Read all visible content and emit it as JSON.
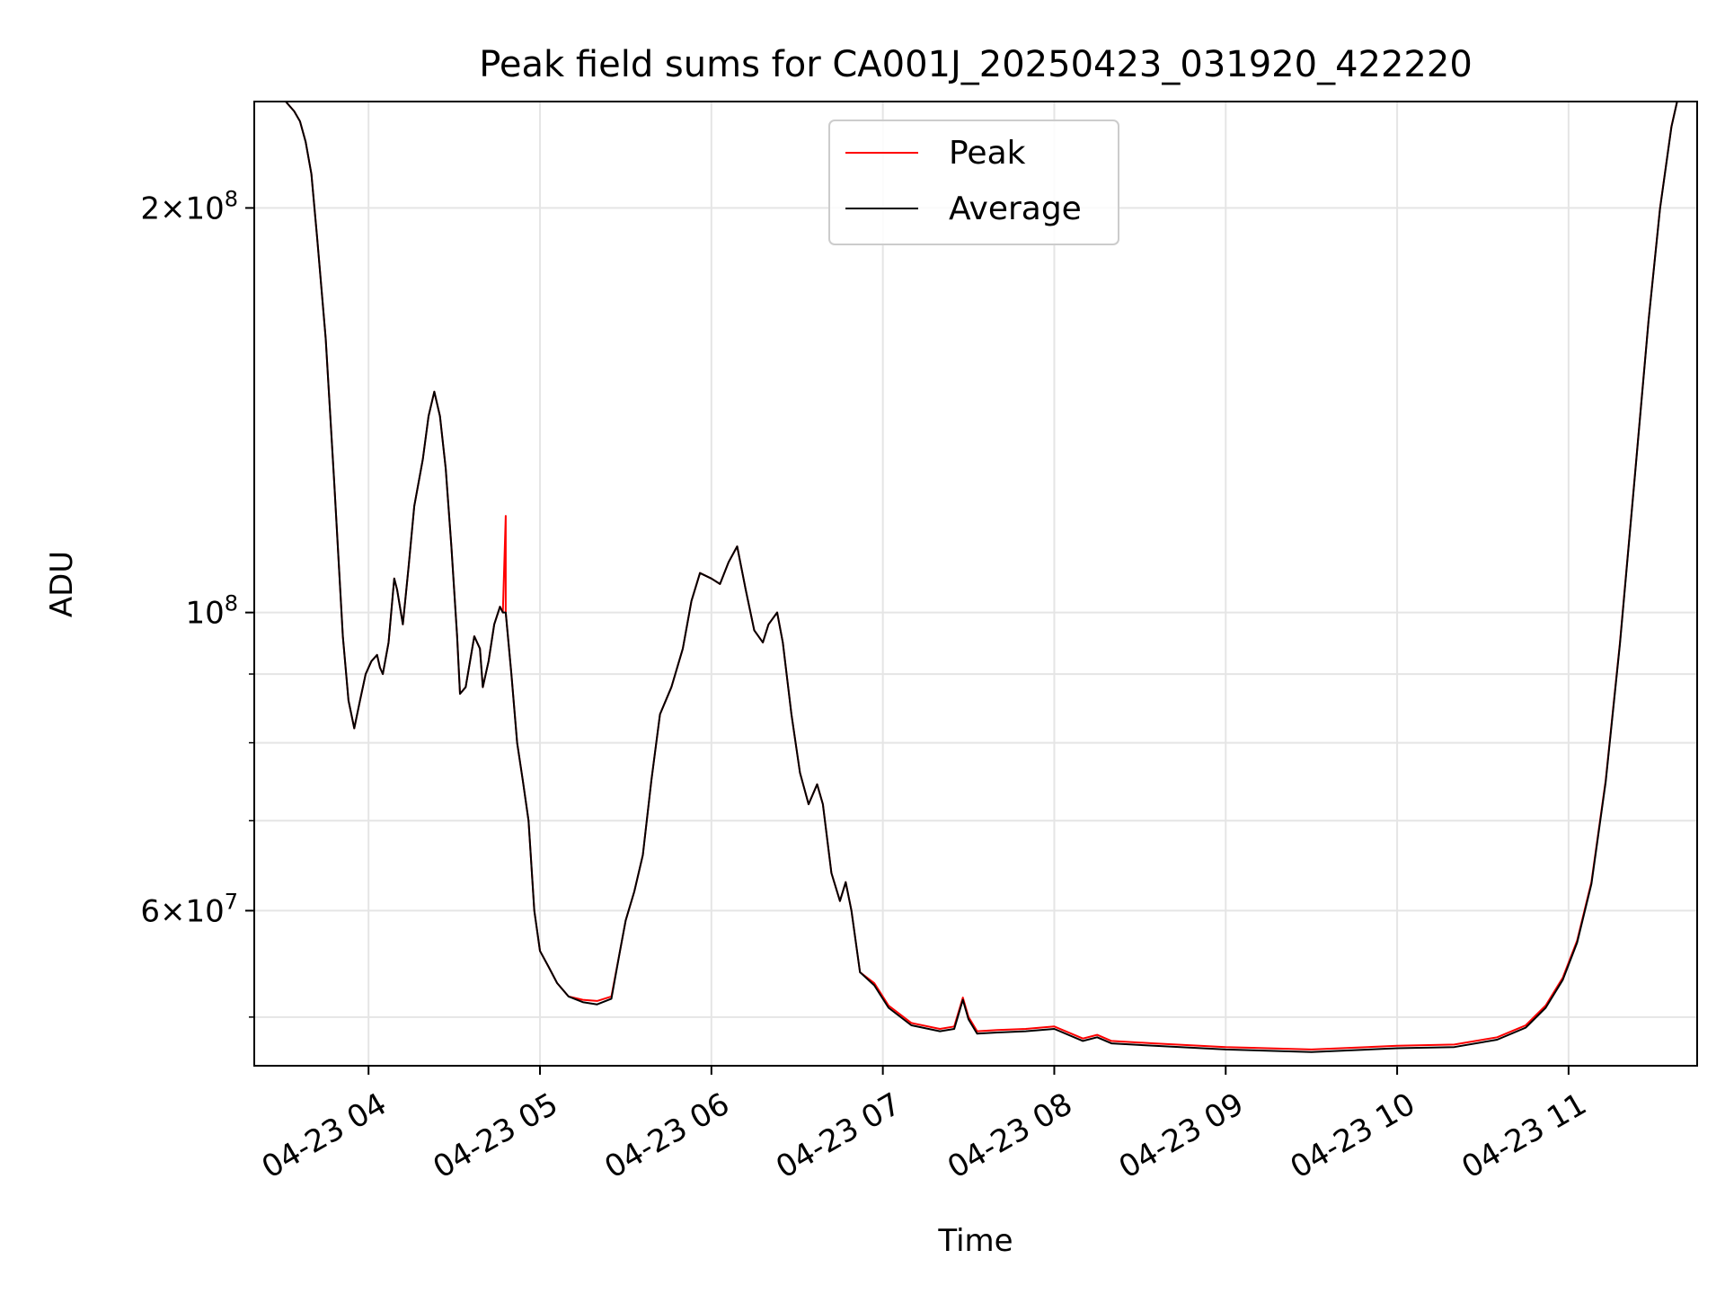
{
  "chart_data": {
    "type": "line",
    "title": "Peak field sums for CA001J_20250423_031920_422220",
    "xlabel": "Time",
    "ylabel": "ADU",
    "yscale": "log",
    "xlim": [
      "2025-04-23 03:20",
      "2025-04-23 11:45"
    ],
    "ylim": [
      46000000,
      240000000
    ],
    "x_ticks": [
      {
        "time": "2025-04-23 04:00",
        "label": "04-23 04"
      },
      {
        "time": "2025-04-23 05:00",
        "label": "04-23 05"
      },
      {
        "time": "2025-04-23 06:00",
        "label": "04-23 06"
      },
      {
        "time": "2025-04-23 07:00",
        "label": "04-23 07"
      },
      {
        "time": "2025-04-23 08:00",
        "label": "04-23 08"
      },
      {
        "time": "2025-04-23 09:00",
        "label": "04-23 09"
      },
      {
        "time": "2025-04-23 10:00",
        "label": "04-23 10"
      },
      {
        "time": "2025-04-23 11:00",
        "label": "04-23 11"
      }
    ],
    "y_major_ticks": [
      {
        "value": 60000000,
        "base": "6×10",
        "exp": "7"
      },
      {
        "value": 100000000,
        "base": "10",
        "exp": "8"
      },
      {
        "value": 200000000,
        "base": "2×10",
        "exp": "8"
      }
    ],
    "y_minor_ticks": [
      50000000,
      70000000,
      80000000,
      90000000
    ],
    "grid": true,
    "legend_position": "upper-center",
    "series": [
      {
        "name": "Peak",
        "color": "#ff0000",
        "points": [
          [
            "2025-04-23 03:31",
            240000000
          ],
          [
            "2025-04-23 03:34",
            236000000
          ],
          [
            "2025-04-23 03:36",
            232000000
          ],
          [
            "2025-04-23 03:38",
            224000000
          ],
          [
            "2025-04-23 03:40",
            212000000
          ],
          [
            "2025-04-23 03:42",
            190000000
          ],
          [
            "2025-04-23 03:45",
            160000000
          ],
          [
            "2025-04-23 03:48",
            125000000
          ],
          [
            "2025-04-23 03:51",
            96000000
          ],
          [
            "2025-04-23 03:53",
            86000000
          ],
          [
            "2025-04-23 03:55",
            82000000
          ],
          [
            "2025-04-23 03:57",
            86000000
          ],
          [
            "2025-04-23 03:59",
            90000000
          ],
          [
            "2025-04-23 04:01",
            92000000
          ],
          [
            "2025-04-23 04:03",
            93000000
          ],
          [
            "2025-04-23 04:04",
            91000000
          ],
          [
            "2025-04-23 04:05",
            90000000
          ],
          [
            "2025-04-23 04:07",
            95000000
          ],
          [
            "2025-04-23 04:09",
            106000000
          ],
          [
            "2025-04-23 04:10",
            104000000
          ],
          [
            "2025-04-23 04:12",
            98000000
          ],
          [
            "2025-04-23 04:14",
            108000000
          ],
          [
            "2025-04-23 04:16",
            120000000
          ],
          [
            "2025-04-23 04:19",
            130000000
          ],
          [
            "2025-04-23 04:21",
            140000000
          ],
          [
            "2025-04-23 04:23",
            146000000
          ],
          [
            "2025-04-23 04:25",
            140000000
          ],
          [
            "2025-04-23 04:27",
            128000000
          ],
          [
            "2025-04-23 04:29",
            112000000
          ],
          [
            "2025-04-23 04:31",
            96000000
          ],
          [
            "2025-04-23 04:32",
            87000000
          ],
          [
            "2025-04-23 04:34",
            88000000
          ],
          [
            "2025-04-23 04:37",
            96000000
          ],
          [
            "2025-04-23 04:39",
            94000000
          ],
          [
            "2025-04-23 04:40",
            88000000
          ],
          [
            "2025-04-23 04:42",
            92000000
          ],
          [
            "2025-04-23 04:44",
            98000000
          ],
          [
            "2025-04-23 04:46",
            101000000
          ],
          [
            "2025-04-23 04:47",
            100000000
          ],
          [
            "2025-04-23 04:48",
            118000000
          ],
          [
            "2025-04-23 04:48",
            100000000
          ],
          [
            "2025-04-23 04:50",
            90000000
          ],
          [
            "2025-04-23 04:52",
            80000000
          ],
          [
            "2025-04-23 04:54",
            75000000
          ],
          [
            "2025-04-23 04:56",
            70000000
          ],
          [
            "2025-04-23 04:58",
            60000000
          ],
          [
            "2025-04-23 05:00",
            56000000
          ],
          [
            "2025-04-23 05:03",
            54500000
          ],
          [
            "2025-04-23 05:06",
            53000000
          ],
          [
            "2025-04-23 05:10",
            51800000
          ],
          [
            "2025-04-23 05:15",
            51500000
          ],
          [
            "2025-04-23 05:20",
            51400000
          ],
          [
            "2025-04-23 05:25",
            51800000
          ],
          [
            "2025-04-23 05:28",
            56000000
          ],
          [
            "2025-04-23 05:30",
            59000000
          ],
          [
            "2025-04-23 05:33",
            62000000
          ],
          [
            "2025-04-23 05:36",
            66000000
          ],
          [
            "2025-04-23 05:39",
            75000000
          ],
          [
            "2025-04-23 05:42",
            84000000
          ],
          [
            "2025-04-23 05:46",
            88000000
          ],
          [
            "2025-04-23 05:50",
            94000000
          ],
          [
            "2025-04-23 05:53",
            102000000
          ],
          [
            "2025-04-23 05:56",
            107000000
          ],
          [
            "2025-04-23 06:00",
            106000000
          ],
          [
            "2025-04-23 06:03",
            105000000
          ],
          [
            "2025-04-23 06:06",
            109000000
          ],
          [
            "2025-04-23 06:09",
            112000000
          ],
          [
            "2025-04-23 06:12",
            104000000
          ],
          [
            "2025-04-23 06:15",
            97000000
          ],
          [
            "2025-04-23 06:18",
            95000000
          ],
          [
            "2025-04-23 06:20",
            98000000
          ],
          [
            "2025-04-23 06:23",
            100000000
          ],
          [
            "2025-04-23 06:25",
            95000000
          ],
          [
            "2025-04-23 06:28",
            84000000
          ],
          [
            "2025-04-23 06:31",
            76000000
          ],
          [
            "2025-04-23 06:34",
            72000000
          ],
          [
            "2025-04-23 06:37",
            74500000
          ],
          [
            "2025-04-23 06:39",
            72000000
          ],
          [
            "2025-04-23 06:42",
            64000000
          ],
          [
            "2025-04-23 06:45",
            61000000
          ],
          [
            "2025-04-23 06:47",
            63000000
          ],
          [
            "2025-04-23 06:49",
            60000000
          ],
          [
            "2025-04-23 06:52",
            54000000
          ],
          [
            "2025-04-23 06:57",
            53000000
          ],
          [
            "2025-04-23 07:02",
            51000000
          ],
          [
            "2025-04-23 07:10",
            49500000
          ],
          [
            "2025-04-23 07:20",
            49000000
          ],
          [
            "2025-04-23 07:25",
            49200000
          ],
          [
            "2025-04-23 07:28",
            51700000
          ],
          [
            "2025-04-23 07:30",
            50000000
          ],
          [
            "2025-04-23 07:33",
            48800000
          ],
          [
            "2025-04-23 07:40",
            48900000
          ],
          [
            "2025-04-23 07:50",
            49000000
          ],
          [
            "2025-04-23 08:00",
            49200000
          ],
          [
            "2025-04-23 08:10",
            48200000
          ],
          [
            "2025-04-23 08:15",
            48500000
          ],
          [
            "2025-04-23 08:20",
            48000000
          ],
          [
            "2025-04-23 08:35",
            47800000
          ],
          [
            "2025-04-23 09:00",
            47500000
          ],
          [
            "2025-04-23 09:30",
            47300000
          ],
          [
            "2025-04-23 10:00",
            47600000
          ],
          [
            "2025-04-23 10:20",
            47700000
          ],
          [
            "2025-04-23 10:35",
            48300000
          ],
          [
            "2025-04-23 10:45",
            49300000
          ],
          [
            "2025-04-23 10:52",
            51000000
          ],
          [
            "2025-04-23 10:58",
            53500000
          ],
          [
            "2025-04-23 11:03",
            57000000
          ],
          [
            "2025-04-23 11:08",
            63000000
          ],
          [
            "2025-04-23 11:13",
            75000000
          ],
          [
            "2025-04-23 11:18",
            95000000
          ],
          [
            "2025-04-23 11:23",
            125000000
          ],
          [
            "2025-04-23 11:28",
            165000000
          ],
          [
            "2025-04-23 11:32",
            200000000
          ],
          [
            "2025-04-23 11:36",
            230000000
          ],
          [
            "2025-04-23 11:38",
            240000000
          ]
        ]
      },
      {
        "name": "Average",
        "color": "#000000",
        "points": [
          [
            "2025-04-23 03:31",
            240000000
          ],
          [
            "2025-04-23 03:34",
            236000000
          ],
          [
            "2025-04-23 03:36",
            232000000
          ],
          [
            "2025-04-23 03:38",
            224000000
          ],
          [
            "2025-04-23 03:40",
            212000000
          ],
          [
            "2025-04-23 03:42",
            190000000
          ],
          [
            "2025-04-23 03:45",
            160000000
          ],
          [
            "2025-04-23 03:48",
            125000000
          ],
          [
            "2025-04-23 03:51",
            96000000
          ],
          [
            "2025-04-23 03:53",
            86000000
          ],
          [
            "2025-04-23 03:55",
            82000000
          ],
          [
            "2025-04-23 03:57",
            86000000
          ],
          [
            "2025-04-23 03:59",
            90000000
          ],
          [
            "2025-04-23 04:01",
            92000000
          ],
          [
            "2025-04-23 04:03",
            93000000
          ],
          [
            "2025-04-23 04:04",
            91000000
          ],
          [
            "2025-04-23 04:05",
            90000000
          ],
          [
            "2025-04-23 04:07",
            95000000
          ],
          [
            "2025-04-23 04:09",
            106000000
          ],
          [
            "2025-04-23 04:10",
            104000000
          ],
          [
            "2025-04-23 04:12",
            98000000
          ],
          [
            "2025-04-23 04:14",
            108000000
          ],
          [
            "2025-04-23 04:16",
            120000000
          ],
          [
            "2025-04-23 04:19",
            130000000
          ],
          [
            "2025-04-23 04:21",
            140000000
          ],
          [
            "2025-04-23 04:23",
            146000000
          ],
          [
            "2025-04-23 04:25",
            140000000
          ],
          [
            "2025-04-23 04:27",
            128000000
          ],
          [
            "2025-04-23 04:29",
            112000000
          ],
          [
            "2025-04-23 04:31",
            96000000
          ],
          [
            "2025-04-23 04:32",
            87000000
          ],
          [
            "2025-04-23 04:34",
            88000000
          ],
          [
            "2025-04-23 04:37",
            96000000
          ],
          [
            "2025-04-23 04:39",
            94000000
          ],
          [
            "2025-04-23 04:40",
            88000000
          ],
          [
            "2025-04-23 04:42",
            92000000
          ],
          [
            "2025-04-23 04:44",
            98000000
          ],
          [
            "2025-04-23 04:46",
            101000000
          ],
          [
            "2025-04-23 04:47",
            100000000
          ],
          [
            "2025-04-23 04:48",
            100000000
          ],
          [
            "2025-04-23 04:50",
            90000000
          ],
          [
            "2025-04-23 04:52",
            80000000
          ],
          [
            "2025-04-23 04:54",
            75000000
          ],
          [
            "2025-04-23 04:56",
            70000000
          ],
          [
            "2025-04-23 04:58",
            60000000
          ],
          [
            "2025-04-23 05:00",
            56000000
          ],
          [
            "2025-04-23 05:03",
            54500000
          ],
          [
            "2025-04-23 05:06",
            53000000
          ],
          [
            "2025-04-23 05:10",
            51800000
          ],
          [
            "2025-04-23 05:15",
            51300000
          ],
          [
            "2025-04-23 05:20",
            51100000
          ],
          [
            "2025-04-23 05:25",
            51600000
          ],
          [
            "2025-04-23 05:28",
            56000000
          ],
          [
            "2025-04-23 05:30",
            59000000
          ],
          [
            "2025-04-23 05:33",
            62000000
          ],
          [
            "2025-04-23 05:36",
            66000000
          ],
          [
            "2025-04-23 05:39",
            75000000
          ],
          [
            "2025-04-23 05:42",
            84000000
          ],
          [
            "2025-04-23 05:46",
            88000000
          ],
          [
            "2025-04-23 05:50",
            94000000
          ],
          [
            "2025-04-23 05:53",
            102000000
          ],
          [
            "2025-04-23 05:56",
            107000000
          ],
          [
            "2025-04-23 06:00",
            106000000
          ],
          [
            "2025-04-23 06:03",
            105000000
          ],
          [
            "2025-04-23 06:06",
            109000000
          ],
          [
            "2025-04-23 06:09",
            112000000
          ],
          [
            "2025-04-23 06:12",
            104000000
          ],
          [
            "2025-04-23 06:15",
            97000000
          ],
          [
            "2025-04-23 06:18",
            95000000
          ],
          [
            "2025-04-23 06:20",
            98000000
          ],
          [
            "2025-04-23 06:23",
            100000000
          ],
          [
            "2025-04-23 06:25",
            95000000
          ],
          [
            "2025-04-23 06:28",
            84000000
          ],
          [
            "2025-04-23 06:31",
            76000000
          ],
          [
            "2025-04-23 06:34",
            72000000
          ],
          [
            "2025-04-23 06:37",
            74500000
          ],
          [
            "2025-04-23 06:39",
            72000000
          ],
          [
            "2025-04-23 06:42",
            64000000
          ],
          [
            "2025-04-23 06:45",
            61000000
          ],
          [
            "2025-04-23 06:47",
            63000000
          ],
          [
            "2025-04-23 06:49",
            60000000
          ],
          [
            "2025-04-23 06:52",
            54000000
          ],
          [
            "2025-04-23 06:57",
            52800000
          ],
          [
            "2025-04-23 07:02",
            50800000
          ],
          [
            "2025-04-23 07:10",
            49300000
          ],
          [
            "2025-04-23 07:20",
            48800000
          ],
          [
            "2025-04-23 07:25",
            49000000
          ],
          [
            "2025-04-23 07:28",
            51500000
          ],
          [
            "2025-04-23 07:30",
            49800000
          ],
          [
            "2025-04-23 07:33",
            48600000
          ],
          [
            "2025-04-23 07:40",
            48700000
          ],
          [
            "2025-04-23 07:50",
            48800000
          ],
          [
            "2025-04-23 08:00",
            49000000
          ],
          [
            "2025-04-23 08:10",
            48000000
          ],
          [
            "2025-04-23 08:15",
            48300000
          ],
          [
            "2025-04-23 08:20",
            47800000
          ],
          [
            "2025-04-23 08:35",
            47600000
          ],
          [
            "2025-04-23 09:00",
            47300000
          ],
          [
            "2025-04-23 09:30",
            47100000
          ],
          [
            "2025-04-23 10:00",
            47400000
          ],
          [
            "2025-04-23 10:20",
            47500000
          ],
          [
            "2025-04-23 10:35",
            48100000
          ],
          [
            "2025-04-23 10:45",
            49100000
          ],
          [
            "2025-04-23 10:52",
            50800000
          ],
          [
            "2025-04-23 10:58",
            53300000
          ],
          [
            "2025-04-23 11:03",
            56800000
          ],
          [
            "2025-04-23 11:08",
            62800000
          ],
          [
            "2025-04-23 11:13",
            74800000
          ],
          [
            "2025-04-23 11:18",
            94800000
          ],
          [
            "2025-04-23 11:23",
            124800000
          ],
          [
            "2025-04-23 11:28",
            164800000
          ],
          [
            "2025-04-23 11:32",
            199800000
          ],
          [
            "2025-04-23 11:36",
            229800000
          ],
          [
            "2025-04-23 11:38",
            240000000
          ]
        ]
      }
    ]
  }
}
